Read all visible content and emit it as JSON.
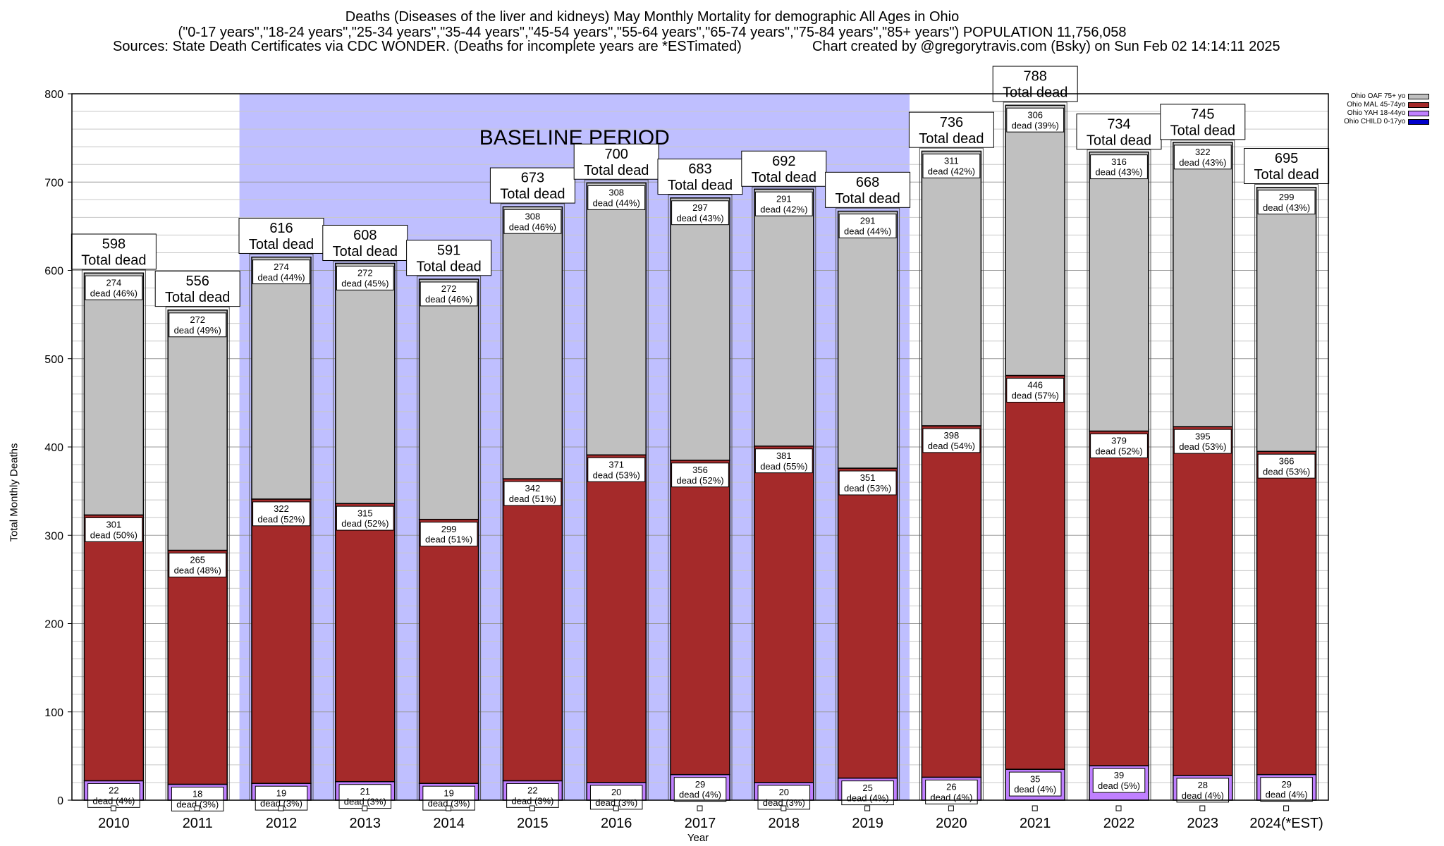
{
  "header": {
    "title_line1": "Deaths (Diseases of the liver and kidneys) May Monthly Mortality for demographic All Ages in Ohio",
    "title_line2": "(\"0-17 years\",\"18-24 years\",\"25-34 years\",\"35-44 years\",\"45-54 years\",\"55-64 years\",\"65-74 years\",\"75-84 years\",\"85+ years\") POPULATION 11,756,058",
    "sources": "Sources: State Death Certificates via CDC WONDER. (Deaths for incomplete years are *ESTimated)",
    "credit": "Chart created by @gregorytravis.com (Bsky) on Sun Feb 02 14:14:11 2025"
  },
  "chart_data": {
    "type": "bar",
    "stacked": true,
    "categories": [
      "2010",
      "2011",
      "2012",
      "2013",
      "2014",
      "2015",
      "2016",
      "2017",
      "2018",
      "2019",
      "2020",
      "2021",
      "2022",
      "2023",
      "2024(*EST)"
    ],
    "series": [
      {
        "name": "Ohio CHILD 0-17yo",
        "color": "#0000cc",
        "values": [
          0,
          0,
          0,
          0,
          0,
          0,
          0,
          0,
          0,
          0,
          0,
          0,
          0,
          0,
          0
        ]
      },
      {
        "name": "Ohio YAH 18-44yo",
        "color": "#c080ff",
        "values": [
          22,
          18,
          19,
          21,
          19,
          22,
          20,
          29,
          20,
          25,
          26,
          35,
          39,
          28,
          29
        ],
        "percents": [
          "4%",
          "3%",
          "3%",
          "3%",
          "3%",
          "3%",
          "3%",
          "4%",
          "3%",
          "4%",
          "4%",
          "4%",
          "5%",
          "4%",
          "4%"
        ]
      },
      {
        "name": "Ohio MAL 45-74yo",
        "color": "#a52a2a",
        "values": [
          301,
          265,
          322,
          315,
          299,
          342,
          371,
          356,
          381,
          351,
          398,
          446,
          379,
          395,
          366
        ],
        "percents": [
          "50%",
          "48%",
          "52%",
          "52%",
          "51%",
          "51%",
          "53%",
          "52%",
          "55%",
          "53%",
          "54%",
          "57%",
          "52%",
          "53%",
          "53%"
        ]
      },
      {
        "name": "Ohio OAF 75+ yo",
        "color": "#c0c0c0",
        "values": [
          274,
          272,
          274,
          272,
          272,
          308,
          308,
          297,
          291,
          291,
          311,
          306,
          316,
          322,
          299
        ],
        "percents": [
          "46%",
          "49%",
          "44%",
          "45%",
          "46%",
          "46%",
          "44%",
          "43%",
          "42%",
          "44%",
          "42%",
          "39%",
          "43%",
          "43%",
          "43%"
        ]
      }
    ],
    "totals": [
      598,
      556,
      616,
      608,
      591,
      673,
      700,
      683,
      692,
      668,
      736,
      788,
      734,
      745,
      695
    ],
    "total_label": "Total dead",
    "segment_label": "dead",
    "xlabel": "Year",
    "ylabel": "Total Monthly Deaths",
    "ylim": [
      0,
      800
    ],
    "yticks": [
      0,
      100,
      200,
      300,
      400,
      500,
      600,
      700,
      800
    ],
    "baseline": {
      "label": "BASELINE PERIOD",
      "from": "2012",
      "to": "2019",
      "color": "#bfbfff"
    },
    "legend_position": "top-right",
    "grid": true
  }
}
